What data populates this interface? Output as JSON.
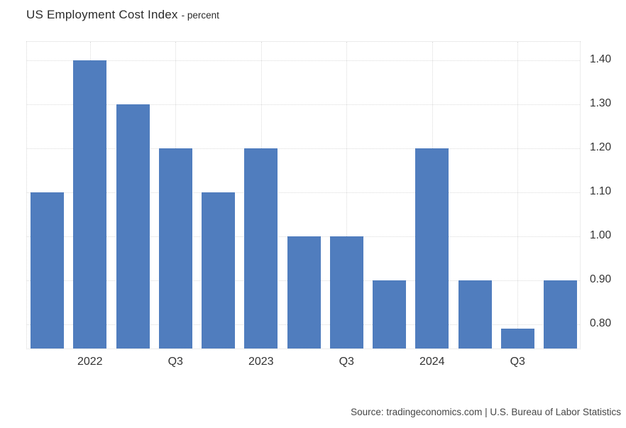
{
  "header": {
    "title": "US Employment Cost Index",
    "subtitle": "- percent"
  },
  "footer": {
    "source_text": "Source: tradingeconomics.com | U.S. Bureau of Labor Statistics"
  },
  "colors": {
    "bar": "#507dbe",
    "gridline": "#dcdcdc",
    "plot_border": "#d8d8d8",
    "axis_label": "#333333",
    "title_text": "#2b2b2b",
    "source_text": "#454545",
    "background": "#ffffff"
  },
  "chart_data": {
    "type": "bar",
    "title": "US Employment Cost Index",
    "units": "percent",
    "categories": [
      "",
      "2022",
      "",
      "Q3",
      "",
      "2023",
      "",
      "Q3",
      "",
      "2024",
      "",
      "Q3",
      ""
    ],
    "values": [
      1.1,
      1.4,
      1.3,
      1.2,
      1.1,
      1.2,
      1.0,
      1.0,
      0.9,
      1.2,
      0.9,
      0.79,
      0.9
    ],
    "y_tick_values": [
      1.4,
      1.3,
      1.2,
      1.1,
      1.0,
      0.9,
      0.8
    ],
    "y_tick_labels": [
      "1.40",
      "1.30",
      "1.20",
      "1.10",
      "1.00",
      "0.90",
      "0.80"
    ],
    "ylim": [
      0.745,
      1.4415
    ],
    "grid": true,
    "legend": false,
    "y_axis_position": "right",
    "bar_color": "#507dbe"
  }
}
